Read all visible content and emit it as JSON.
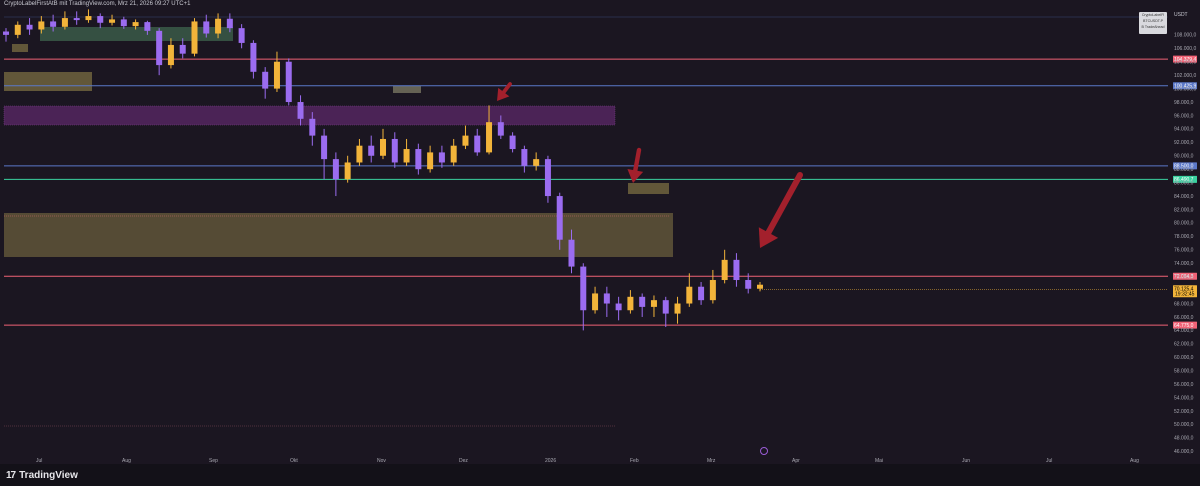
{
  "header": {
    "text": "CryptoLabelFirstAtB mit TradingView.com, Mrz 21, 2026 09:27 UTC+1"
  },
  "footer": {
    "logo_icon": "17",
    "logo_text": "TradingView"
  },
  "symbol_box": {
    "line1": "CryptoLabelFi",
    "line2": "BTCUSDT.P",
    "line3": "B TradeAhead"
  },
  "currency": "USDT",
  "colors": {
    "background": "#1b1621",
    "up_candle": "#f2b43a",
    "down_candle": "#9b6cf0",
    "resistance_line": "#f06276",
    "green_line": "#3ad1a0",
    "blue_line": "#5b78c9",
    "arrow": "#a3202c",
    "zone_olive": "#6a5e3c",
    "zone_purple": "#6b2d7a",
    "zone_teal": "#3a5a48"
  },
  "chart_data": {
    "type": "candlestick",
    "title": "",
    "ylim": [
      45000,
      112000
    ],
    "y_ticks": [
      46000,
      48000,
      50000,
      52000,
      54000,
      56000,
      58000,
      60000,
      62000,
      64000,
      66000,
      68000,
      70000,
      72000,
      74000,
      76000,
      78000,
      80000,
      82000,
      84000,
      86000,
      88000,
      90000,
      92000,
      94000,
      96000,
      98000,
      100000,
      102000,
      104000,
      106000,
      108000
    ],
    "y_tick_labels": [
      "46.000,0",
      "48.000,0",
      "50.000,0",
      "52.000,0",
      "54.000,0",
      "56.000,0",
      "58.000,0",
      "60.000,0",
      "62.000,0",
      "64.000,0",
      "66.000,0",
      "68.000,0",
      "70.000,0",
      "72.000,0",
      "74.000,0",
      "76.000,0",
      "78.000,0",
      "80.000,0",
      "82.000,0",
      "84.000,0",
      "86.000,0",
      "88.000,0",
      "90.000,0",
      "92.000,0",
      "94.000,0",
      "96.000,0",
      "98.000,0",
      "100.000,0",
      "102.000,0",
      "104.000,0",
      "106.000,0",
      "108.000,0"
    ],
    "x_tick_labels": [
      "Jul",
      "Aug",
      "Sep",
      "Okt",
      "Nov",
      "Dez",
      "2026",
      "Feb",
      "Mrz",
      "Apr",
      "Mai",
      "Jun",
      "Jul",
      "Aug"
    ],
    "price_lines": [
      {
        "name": "resistance-104",
        "value": 104379.4,
        "label": "104.379,4",
        "color": "#f06276"
      },
      {
        "name": "blue-100",
        "value": 100425.9,
        "label": "100.425,9",
        "color": "#5b78c9"
      },
      {
        "name": "blue-88",
        "value": 88500.0,
        "label": "88.500,0",
        "color": "#5b78c9"
      },
      {
        "name": "green-86",
        "value": 86490.7,
        "label": "86.490,7",
        "color": "#3ad1a0"
      },
      {
        "name": "resistance-72",
        "value": 72064.3,
        "label": "72.064,3",
        "color": "#f06276"
      },
      {
        "name": "support-64",
        "value": 64775.0,
        "label": "64.775,0",
        "color": "#f06276"
      }
    ],
    "current_price": {
      "value": 70125.4,
      "label": "70.125,4",
      "sub_label": "19:32:45"
    },
    "candles": [
      [
        0,
        108500,
        108000,
        107000,
        109000
      ],
      [
        1,
        108000,
        109500,
        107500,
        110000
      ],
      [
        2,
        109500,
        108800,
        108000,
        110500
      ],
      [
        3,
        108800,
        110000,
        108200,
        110800
      ],
      [
        4,
        110000,
        109200,
        108500,
        111000
      ],
      [
        5,
        109200,
        110500,
        108800,
        111500
      ],
      [
        6,
        110500,
        110200,
        109500,
        111500
      ],
      [
        7,
        110200,
        110800,
        109800,
        111800
      ],
      [
        8,
        110800,
        109800,
        109000,
        111200
      ],
      [
        9,
        109800,
        110300,
        109400,
        111000
      ],
      [
        10,
        110300,
        109300,
        108900,
        110700
      ],
      [
        11,
        109300,
        109900,
        108800,
        110300
      ],
      [
        12,
        109900,
        108600,
        108000,
        110100
      ],
      [
        13,
        108600,
        103500,
        102000,
        109000
      ],
      [
        14,
        103500,
        106500,
        103000,
        107500
      ],
      [
        15,
        106500,
        105200,
        104500,
        107500
      ],
      [
        16,
        105200,
        110000,
        104800,
        110500
      ],
      [
        17,
        110000,
        108200,
        107600,
        111000
      ],
      [
        18,
        108200,
        110400,
        107500,
        111200
      ],
      [
        19,
        110400,
        109000,
        108400,
        111200
      ],
      [
        20,
        109000,
        106800,
        106000,
        109600
      ],
      [
        21,
        106800,
        102500,
        101500,
        107200
      ],
      [
        22,
        102500,
        100000,
        98500,
        103200
      ],
      [
        23,
        100000,
        104000,
        99500,
        105500
      ],
      [
        24,
        104000,
        98000,
        97500,
        104500
      ],
      [
        25,
        98000,
        95500,
        94500,
        99000
      ],
      [
        26,
        95500,
        93000,
        91500,
        96500
      ],
      [
        27,
        93000,
        89500,
        86500,
        94000
      ],
      [
        28,
        89500,
        86500,
        84000,
        90500
      ],
      [
        29,
        86500,
        89000,
        86000,
        90000
      ],
      [
        30,
        89000,
        91500,
        88500,
        92500
      ],
      [
        31,
        91500,
        90000,
        89000,
        93000
      ],
      [
        32,
        90000,
        92500,
        89500,
        94000
      ],
      [
        33,
        92500,
        89000,
        88200,
        93500
      ],
      [
        34,
        89000,
        91000,
        88500,
        92500
      ],
      [
        35,
        91000,
        88000,
        87200,
        91800
      ],
      [
        36,
        88000,
        90500,
        87500,
        91500
      ],
      [
        37,
        90500,
        89000,
        88200,
        91500
      ],
      [
        38,
        89000,
        91500,
        88500,
        92500
      ],
      [
        39,
        91500,
        93000,
        91000,
        94500
      ],
      [
        40,
        93000,
        90500,
        90000,
        94000
      ],
      [
        41,
        90500,
        95000,
        90200,
        97500
      ],
      [
        42,
        95000,
        93000,
        92500,
        96000
      ],
      [
        43,
        93000,
        91000,
        90500,
        93500
      ],
      [
        44,
        91000,
        88500,
        87500,
        91500
      ],
      [
        45,
        88500,
        89500,
        87800,
        90500
      ],
      [
        46,
        89500,
        84000,
        83000,
        90000
      ],
      [
        47,
        84000,
        77500,
        76000,
        84500
      ],
      [
        48,
        77500,
        73500,
        72500,
        79000
      ],
      [
        49,
        73500,
        67000,
        64000,
        74000
      ],
      [
        50,
        67000,
        69500,
        66500,
        70500
      ],
      [
        51,
        69500,
        68000,
        66000,
        70500
      ],
      [
        52,
        68000,
        67000,
        65500,
        69000
      ],
      [
        53,
        67000,
        69000,
        66500,
        70000
      ],
      [
        54,
        69000,
        67500,
        66000,
        69500
      ],
      [
        55,
        67500,
        68500,
        66000,
        69200
      ],
      [
        56,
        68500,
        66500,
        64500,
        69000
      ],
      [
        57,
        66500,
        68000,
        65000,
        69000
      ],
      [
        58,
        68000,
        70500,
        67500,
        72500
      ],
      [
        59,
        70500,
        68500,
        67800,
        71200
      ],
      [
        60,
        68500,
        71500,
        68000,
        73000
      ],
      [
        61,
        71500,
        74500,
        71000,
        76000
      ],
      [
        62,
        74500,
        71500,
        70500,
        75500
      ],
      [
        63,
        71500,
        70200,
        69500,
        72500
      ],
      [
        64,
        70200,
        70800,
        69800,
        71200
      ]
    ]
  }
}
